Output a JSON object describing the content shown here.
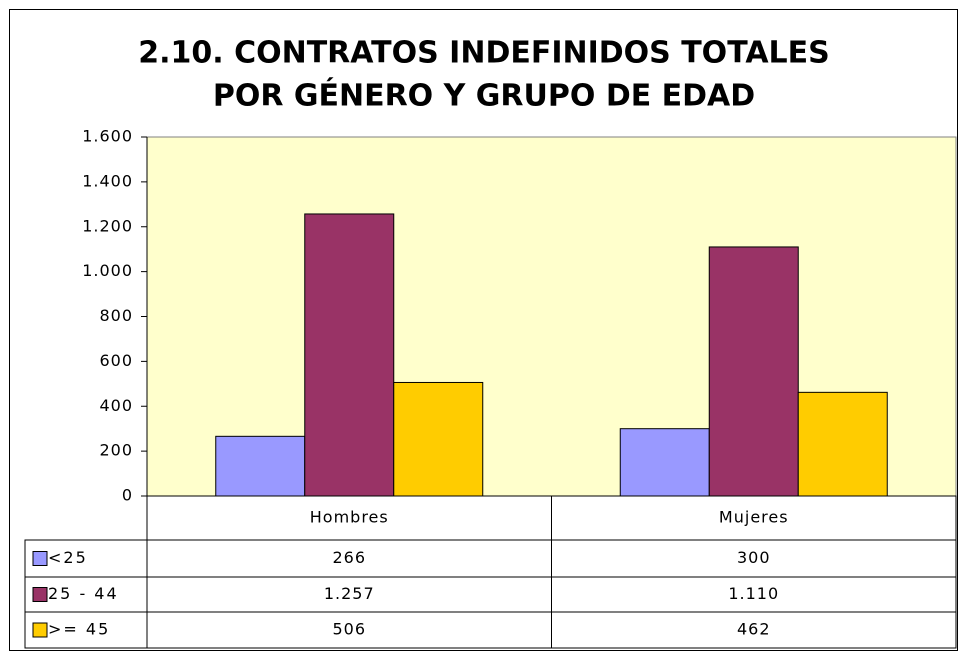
{
  "chart_data": {
    "type": "bar",
    "title": [
      "2.10. CONTRATOS INDEFINIDOS TOTALES",
      "POR GÉNERO Y GRUPO DE EDAD"
    ],
    "categories": [
      "Hombres",
      "Mujeres"
    ],
    "series": [
      {
        "name": "<25",
        "color": "#9999ff",
        "values": [
          266,
          300
        ],
        "value_labels": [
          "266",
          "300"
        ]
      },
      {
        "name": "25 - 44",
        "color": "#993366",
        "values": [
          1257,
          1110
        ],
        "value_labels": [
          "1.257",
          "1.110"
        ]
      },
      {
        "name": ">= 45",
        "color": "#ffcc00",
        "values": [
          506,
          462
        ],
        "value_labels": [
          "506",
          "462"
        ]
      }
    ],
    "ylim": [
      0,
      1600
    ],
    "yticks": [
      0,
      200,
      400,
      600,
      800,
      {
        "value": 1000,
        "label": "1.000"
      },
      {
        "value": 1200,
        "label": "1.200"
      },
      {
        "value": 1400,
        "label": "1.400"
      },
      {
        "value": 1600,
        "label": "1.600"
      }
    ],
    "plot_background": "#ffffcc",
    "grid": false
  }
}
